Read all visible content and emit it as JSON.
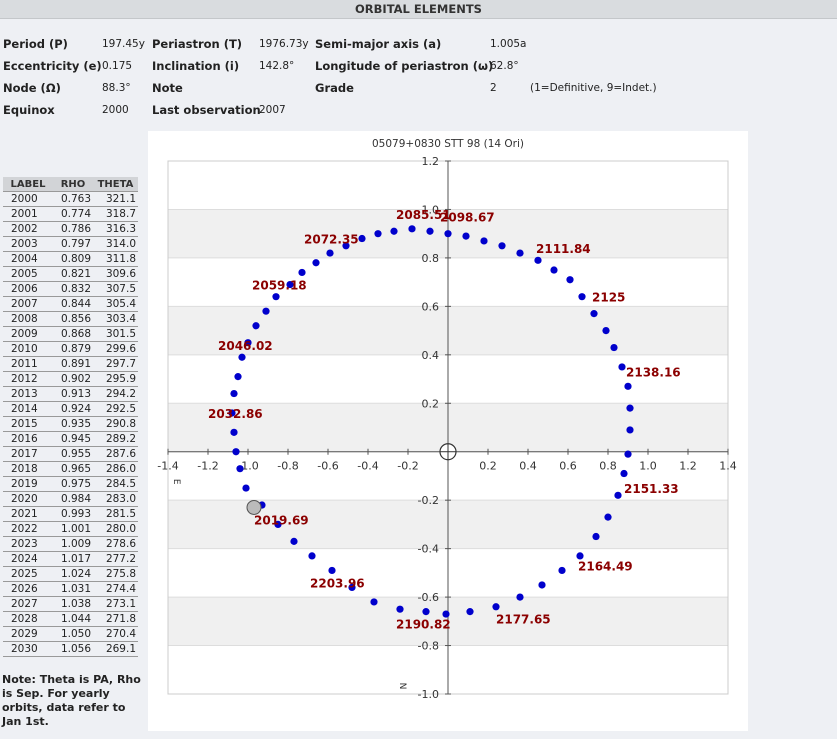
{
  "page_title": "ORBITAL ELEMENTS",
  "elements": {
    "period_label": "Period (P)",
    "period_value": "197.45y",
    "periastron_label": "Periastron (T)",
    "periastron_value": "1976.73y",
    "semimajor_label": "Semi-major axis (a)",
    "semimajor_value": "1.005a",
    "eccentricity_label": "Eccentricity (e)",
    "eccentricity_value": "0.175",
    "inclination_label": "Inclination (i)",
    "inclination_value": "142.8°",
    "longitude_label": "Longitude of periastron (ω)",
    "longitude_value": "62.8°",
    "node_label": "Node (Ω)",
    "node_value": "88.3°",
    "note_label": "Note",
    "grade_label": "Grade",
    "grade_value": "2",
    "grade_desc": "(1=Definitive, 9=Indet.)",
    "equinox_label": "Equinox",
    "equinox_value": "2000",
    "lastobs_label": "Last observation",
    "lastobs_value": "2007"
  },
  "ephemeris": {
    "headers": [
      "LABEL",
      "RHO",
      "THETA"
    ],
    "rows": [
      [
        "2000",
        "0.763",
        "321.1"
      ],
      [
        "2001",
        "0.774",
        "318.7"
      ],
      [
        "2002",
        "0.786",
        "316.3"
      ],
      [
        "2003",
        "0.797",
        "314.0"
      ],
      [
        "2004",
        "0.809",
        "311.8"
      ],
      [
        "2005",
        "0.821",
        "309.6"
      ],
      [
        "2006",
        "0.832",
        "307.5"
      ],
      [
        "2007",
        "0.844",
        "305.4"
      ],
      [
        "2008",
        "0.856",
        "303.4"
      ],
      [
        "2009",
        "0.868",
        "301.5"
      ],
      [
        "2010",
        "0.879",
        "299.6"
      ],
      [
        "2011",
        "0.891",
        "297.7"
      ],
      [
        "2012",
        "0.902",
        "295.9"
      ],
      [
        "2013",
        "0.913",
        "294.2"
      ],
      [
        "2014",
        "0.924",
        "292.5"
      ],
      [
        "2015",
        "0.935",
        "290.8"
      ],
      [
        "2016",
        "0.945",
        "289.2"
      ],
      [
        "2017",
        "0.955",
        "287.6"
      ],
      [
        "2018",
        "0.965",
        "286.0"
      ],
      [
        "2019",
        "0.975",
        "284.5"
      ],
      [
        "2020",
        "0.984",
        "283.0"
      ],
      [
        "2021",
        "0.993",
        "281.5"
      ],
      [
        "2022",
        "1.001",
        "280.0"
      ],
      [
        "2023",
        "1.009",
        "278.6"
      ],
      [
        "2024",
        "1.017",
        "277.2"
      ],
      [
        "2025",
        "1.024",
        "275.8"
      ],
      [
        "2026",
        "1.031",
        "274.4"
      ],
      [
        "2027",
        "1.038",
        "273.1"
      ],
      [
        "2028",
        "1.044",
        "271.8"
      ],
      [
        "2029",
        "1.050",
        "270.4"
      ],
      [
        "2030",
        "1.056",
        "269.1"
      ]
    ]
  },
  "note_text": "Note: Theta is PA, Rho is Sep. For yearly orbits, data refer to Jan 1st.",
  "chart_data": {
    "type": "scatter",
    "title": "05079+0830 STT  98 (14 Ori)",
    "xlim": [
      -1.4,
      1.4
    ],
    "ylim": [
      -1.0,
      1.2
    ],
    "x_ticks": [
      "-1.4",
      "-1.2",
      "-1.0",
      "-0.8",
      "-0.6",
      "-0.4",
      "-0.2",
      "0.2",
      "0.4",
      "0.6",
      "0.8",
      "1.0",
      "1.2",
      "1.4"
    ],
    "y_ticks": [
      "1.2",
      "1.0",
      "0.8",
      "0.6",
      "0.4",
      "0.2",
      "-0.2",
      "-0.4",
      "-0.6",
      "-0.8",
      "-1.0"
    ],
    "east_label": "E",
    "north_label": "N",
    "grid_bands": true,
    "orbit_points": [
      [
        0.0,
        0.9
      ],
      [
        0.09,
        0.89
      ],
      [
        0.18,
        0.87
      ],
      [
        0.27,
        0.85
      ],
      [
        0.36,
        0.82
      ],
      [
        0.45,
        0.79
      ],
      [
        0.53,
        0.75
      ],
      [
        0.61,
        0.71
      ],
      [
        0.67,
        0.64
      ],
      [
        0.73,
        0.57
      ],
      [
        0.79,
        0.5
      ],
      [
        0.83,
        0.43
      ],
      [
        0.87,
        0.35
      ],
      [
        0.9,
        0.27
      ],
      [
        0.91,
        0.18
      ],
      [
        0.91,
        0.09
      ],
      [
        0.9,
        -0.01
      ],
      [
        0.88,
        -0.09
      ],
      [
        0.85,
        -0.18
      ],
      [
        0.8,
        -0.27
      ],
      [
        0.74,
        -0.35
      ],
      [
        0.66,
        -0.43
      ],
      [
        0.57,
        -0.49
      ],
      [
        0.47,
        -0.55
      ],
      [
        0.36,
        -0.6
      ],
      [
        0.24,
        -0.64
      ],
      [
        0.11,
        -0.66
      ],
      [
        -0.01,
        -0.67
      ],
      [
        -0.11,
        -0.66
      ],
      [
        -0.24,
        -0.65
      ],
      [
        -0.37,
        -0.62
      ],
      [
        -0.48,
        -0.56
      ],
      [
        -0.58,
        -0.49
      ],
      [
        -0.68,
        -0.43
      ],
      [
        -0.77,
        -0.37
      ],
      [
        -0.85,
        -0.3
      ],
      [
        -0.93,
        -0.22
      ],
      [
        -1.01,
        -0.15
      ],
      [
        -1.04,
        -0.07
      ],
      [
        -1.06,
        0.0
      ],
      [
        -1.07,
        0.08
      ],
      [
        -1.08,
        0.16
      ],
      [
        -1.07,
        0.24
      ],
      [
        -1.05,
        0.31
      ],
      [
        -1.03,
        0.39
      ],
      [
        -1.0,
        0.45
      ],
      [
        -0.96,
        0.52
      ],
      [
        -0.91,
        0.58
      ],
      [
        -0.86,
        0.64
      ],
      [
        -0.79,
        0.69
      ],
      [
        -0.73,
        0.74
      ],
      [
        -0.66,
        0.78
      ],
      [
        -0.59,
        0.82
      ],
      [
        -0.51,
        0.85
      ],
      [
        -0.43,
        0.88
      ],
      [
        -0.35,
        0.9
      ],
      [
        -0.27,
        0.91
      ],
      [
        -0.18,
        0.92
      ],
      [
        -0.09,
        0.91
      ]
    ],
    "epoch_labels": [
      {
        "text": "2085.51",
        "x": -0.26,
        "y": 0.96
      },
      {
        "text": "2098.67",
        "x": -0.04,
        "y": 0.95
      },
      {
        "text": "2072.35",
        "x": -0.72,
        "y": 0.86
      },
      {
        "text": "2111.84",
        "x": 0.44,
        "y": 0.82
      },
      {
        "text": "2059.18",
        "x": -0.98,
        "y": 0.67
      },
      {
        "text": "2125",
        "x": 0.72,
        "y": 0.62
      },
      {
        "text": "2046.02",
        "x": -1.15,
        "y": 0.42
      },
      {
        "text": "2138.16",
        "x": 0.89,
        "y": 0.31
      },
      {
        "text": "2032.86",
        "x": -1.2,
        "y": 0.14
      },
      {
        "text": "2151.33",
        "x": 0.88,
        "y": -0.17
      },
      {
        "text": "2019.69",
        "x": -0.97,
        "y": -0.3
      },
      {
        "text": "2164.49",
        "x": 0.65,
        "y": -0.49
      },
      {
        "text": "2203.96",
        "x": -0.69,
        "y": -0.56
      },
      {
        "text": "2177.65",
        "x": 0.24,
        "y": -0.71
      },
      {
        "text": "2190.82",
        "x": -0.26,
        "y": -0.73
      }
    ],
    "primary": [
      0.0,
      0.0
    ],
    "current_position": [
      -0.97,
      -0.23
    ]
  },
  "colors": {
    "dot": "#0000cc",
    "epoch_label": "#8b0000",
    "band": "#f0f0f0",
    "grid_line": "#dddddd"
  }
}
